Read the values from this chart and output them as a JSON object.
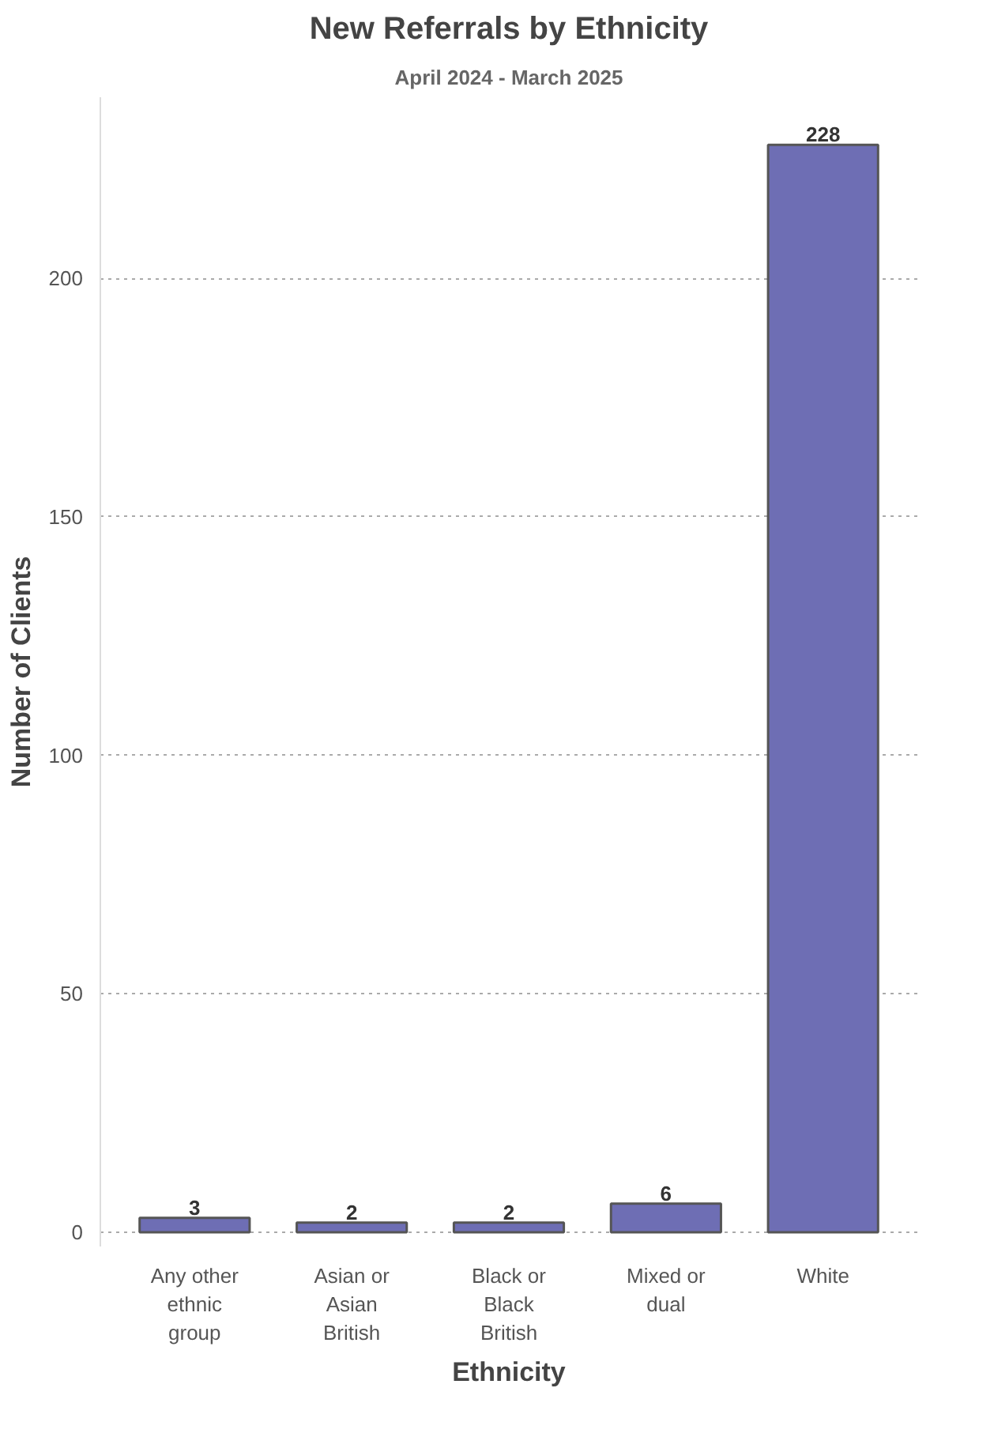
{
  "chart_data": {
    "type": "bar",
    "title": "New Referrals by Ethnicity",
    "subtitle": "April 2024 - March 2025",
    "xlabel": "Ethnicity",
    "ylabel": "Number of Clients",
    "categories": [
      "Any other ethnic group",
      "Asian or Asian British",
      "Black or Black British",
      "Mixed or dual",
      "White"
    ],
    "values": [
      3,
      2,
      2,
      6,
      228
    ],
    "color": "#6e6eb4",
    "ylim": [
      -3,
      238
    ],
    "yticks": [
      0,
      50,
      100,
      150,
      200
    ],
    "grid": "y",
    "data_labels": true
  }
}
